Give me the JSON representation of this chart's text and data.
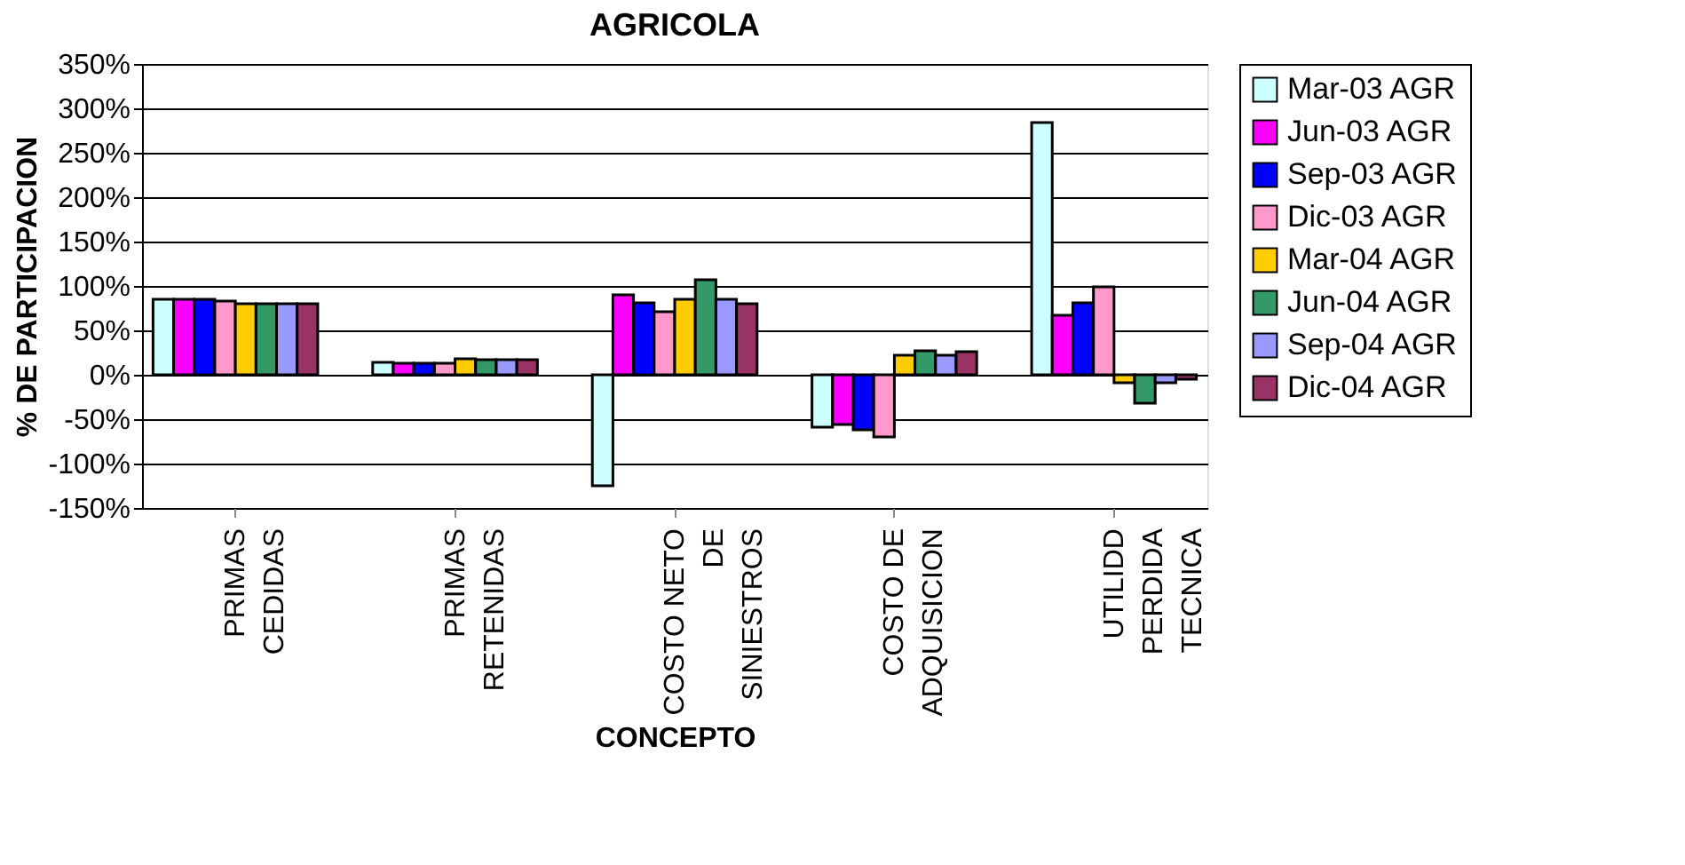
{
  "chart_data": {
    "type": "bar",
    "title": "AGRICOLA",
    "xlabel": "CONCEPTO",
    "ylabel": "% DE PARTICIPACION",
    "categories": [
      "PRIMAS\nCEDIDAS",
      "PRIMAS\nRETENIDAS",
      "COSTO NETO\nDE\nSINIESTROS",
      "COSTO DE\nADQUISICION",
      "UTILIDD\nPERDIDA\nTECNICA"
    ],
    "series": [
      {
        "name": "Mar-03 AGR",
        "color": "#ccffff",
        "values": [
          85,
          14,
          -125,
          -59,
          284
        ]
      },
      {
        "name": "Jun-03 AGR",
        "color": "#ff00ff",
        "values": [
          85,
          13,
          90,
          -56,
          67
        ]
      },
      {
        "name": "Sep-03 AGR",
        "color": "#0000ff",
        "values": [
          85,
          13,
          81,
          -62,
          81
        ]
      },
      {
        "name": "Dic-03 AGR",
        "color": "#ff99cc",
        "values": [
          83,
          13,
          71,
          -70,
          99
        ]
      },
      {
        "name": "Mar-04 AGR",
        "color": "#ffcc00",
        "values": [
          80,
          18,
          85,
          22,
          -9
        ]
      },
      {
        "name": "Jun-04 AGR",
        "color": "#339966",
        "values": [
          80,
          17,
          107,
          27,
          -32
        ]
      },
      {
        "name": "Sep-04 AGR",
        "color": "#9999ff",
        "values": [
          80,
          17,
          85,
          22,
          -9
        ]
      },
      {
        "name": "Dic-04 AGR",
        "color": "#993366",
        "values": [
          80,
          17,
          80,
          26,
          -5
        ]
      }
    ],
    "ylim": [
      -150,
      350
    ],
    "yticks": [
      {
        "value": -150,
        "label": "-150%"
      },
      {
        "value": -100,
        "label": "-100%"
      },
      {
        "value": -50,
        "label": "-50%"
      },
      {
        "value": 0,
        "label": "0%"
      },
      {
        "value": 50,
        "label": "50%"
      },
      {
        "value": 100,
        "label": "100%"
      },
      {
        "value": 150,
        "label": "150%"
      },
      {
        "value": 200,
        "label": "200%"
      },
      {
        "value": 250,
        "label": "250%"
      },
      {
        "value": 300,
        "label": "300%"
      },
      {
        "value": 350,
        "label": "350%"
      }
    ],
    "grid": "y",
    "legend": "right"
  }
}
